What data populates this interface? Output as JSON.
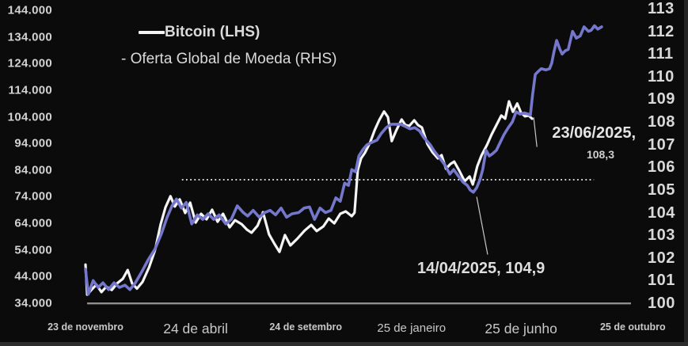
{
  "chart_data": {
    "type": "line",
    "grid": false,
    "legend_position": "top-left-inside",
    "legend": {
      "bitcoin_label": "Bitcoin (LHS)",
      "money_label": "- Oferta Global de Moeda (RHS)"
    },
    "colors": {
      "bitcoin": "#f5f5f5",
      "money_supply": "#7577cc",
      "background": "#0b0b0b",
      "axis_text": "#d2d2d2",
      "baseline": "#8f8f8f",
      "dotted_reference": "#d8d8d8",
      "callout": "#c8c8c8"
    },
    "axes": {
      "left": {
        "side": "left",
        "unit": "USD",
        "min": 34000,
        "max": 144000,
        "ticks": [
          {
            "label": "144.000",
            "v": 144
          },
          {
            "label": "134.000",
            "v": 134
          },
          {
            "label": "124.000",
            "v": 124
          },
          {
            "label": "114.000",
            "v": 114
          },
          {
            "label": "104.000",
            "v": 104
          },
          {
            "label": "94.000",
            "v": 94
          },
          {
            "label": "84.000",
            "v": 84
          },
          {
            "label": "74.000",
            "v": 74
          },
          {
            "label": "64.000",
            "v": 64
          },
          {
            "label": "54.000",
            "v": 54
          },
          {
            "label": "44.000",
            "v": 44
          },
          {
            "label": "34.000",
            "v": 34
          }
        ]
      },
      "right": {
        "side": "right",
        "unit": "index",
        "min": 100,
        "max": 113,
        "ticks": [
          {
            "label": "113",
            "v": 113
          },
          {
            "label": "112",
            "v": 112
          },
          {
            "label": "111",
            "v": 111
          },
          {
            "label": "110",
            "v": 110
          },
          {
            "label": "109",
            "v": 109
          },
          {
            "label": "108",
            "v": 108
          },
          {
            "label": "107",
            "v": 107
          },
          {
            "label": "106",
            "v": 106
          },
          {
            "label": "105",
            "v": 105
          },
          {
            "label": "104",
            "v": 104
          },
          {
            "label": "103",
            "v": 103
          },
          {
            "label": "102",
            "v": 102
          },
          {
            "label": "101",
            "v": 101
          },
          {
            "label": "100",
            "v": 100
          }
        ]
      },
      "x": {
        "ticks": [
          {
            "label": "23 de novembro",
            "f": 0.0,
            "size": "sm"
          },
          {
            "label": "24 de abril",
            "f": 0.201,
            "size": "lg"
          },
          {
            "label": "24 de setembro",
            "f": 0.402,
            "size": "sm"
          },
          {
            "label": "25 de janeiro",
            "f": 0.595,
            "size": "md"
          },
          {
            "label": "25 de junho",
            "f": 0.795,
            "size": "lg"
          },
          {
            "label": "25 de outubro",
            "f": 0.999,
            "size": "sm"
          }
        ]
      }
    },
    "reference_line": {
      "style": "dotted",
      "axis": "right",
      "value": 105.45,
      "f_start": 0.176,
      "f_end": 0.928
    },
    "annotations": [
      {
        "line1": "23/06/2025,",
        "line2": "108,3",
        "callout": {
          "axis": "right",
          "f1": 0.818,
          "v1": 108.2,
          "f2": 0.824,
          "v2": 106.9
        }
      },
      {
        "text": "14/04/2025, 104,9",
        "callout": {
          "axis": "right",
          "f1": 0.714,
          "v1": 104.7,
          "f2": 0.734,
          "v2": 102.15
        }
      }
    ],
    "series": [
      {
        "name": "Bitcoin",
        "axis": "left",
        "unit": "thousands_usd",
        "color": "#f5f5f5",
        "points": [
          [
            0.0,
            48.5
          ],
          [
            0.003,
            37.2
          ],
          [
            0.012,
            39.3
          ],
          [
            0.02,
            41.0
          ],
          [
            0.029,
            38.2
          ],
          [
            0.038,
            40.2
          ],
          [
            0.048,
            39.0
          ],
          [
            0.058,
            41.5
          ],
          [
            0.068,
            43.2
          ],
          [
            0.077,
            46.5
          ],
          [
            0.085,
            41.5
          ],
          [
            0.094,
            39.5
          ],
          [
            0.104,
            42.0
          ],
          [
            0.116,
            47.5
          ],
          [
            0.127,
            54.0
          ],
          [
            0.137,
            63.5
          ],
          [
            0.146,
            70.0
          ],
          [
            0.155,
            74.2
          ],
          [
            0.163,
            70.3
          ],
          [
            0.172,
            73.0
          ],
          [
            0.182,
            67.9
          ],
          [
            0.191,
            71.8
          ],
          [
            0.201,
            64.3
          ],
          [
            0.211,
            67.6
          ],
          [
            0.221,
            65.5
          ],
          [
            0.231,
            69.1
          ],
          [
            0.241,
            64.6
          ],
          [
            0.251,
            67.6
          ],
          [
            0.263,
            62.5
          ],
          [
            0.273,
            65.2
          ],
          [
            0.285,
            63.7
          ],
          [
            0.295,
            61.6
          ],
          [
            0.303,
            60.5
          ],
          [
            0.314,
            63.1
          ],
          [
            0.324,
            68.2
          ],
          [
            0.335,
            59.9
          ],
          [
            0.345,
            56.3
          ],
          [
            0.354,
            53.3
          ],
          [
            0.364,
            59.6
          ],
          [
            0.374,
            55.7
          ],
          [
            0.386,
            58.1
          ],
          [
            0.4,
            61.3
          ],
          [
            0.412,
            63.4
          ],
          [
            0.422,
            61.1
          ],
          [
            0.434,
            62.8
          ],
          [
            0.444,
            65.8
          ],
          [
            0.454,
            64.0
          ],
          [
            0.465,
            67.6
          ],
          [
            0.475,
            68.5
          ],
          [
            0.486,
            66.7
          ],
          [
            0.491,
            68.0
          ],
          [
            0.497,
            84.0
          ],
          [
            0.503,
            88.4
          ],
          [
            0.51,
            90.5
          ],
          [
            0.519,
            94.1
          ],
          [
            0.528,
            99.1
          ],
          [
            0.536,
            102.7
          ],
          [
            0.545,
            106.0
          ],
          [
            0.552,
            103.9
          ],
          [
            0.559,
            94.9
          ],
          [
            0.567,
            98.8
          ],
          [
            0.577,
            103.0
          ],
          [
            0.584,
            100.9
          ],
          [
            0.591,
            100.6
          ],
          [
            0.6,
            102.7
          ],
          [
            0.607,
            100.9
          ],
          [
            0.614,
            100.0
          ],
          [
            0.624,
            93.8
          ],
          [
            0.633,
            90.8
          ],
          [
            0.643,
            88.4
          ],
          [
            0.65,
            89.6
          ],
          [
            0.658,
            84.5
          ],
          [
            0.666,
            86.3
          ],
          [
            0.673,
            87.2
          ],
          [
            0.682,
            83.9
          ],
          [
            0.692,
            79.8
          ],
          [
            0.701,
            81.6
          ],
          [
            0.707,
            78.6
          ],
          [
            0.715,
            85.4
          ],
          [
            0.723,
            89.6
          ],
          [
            0.733,
            93.5
          ],
          [
            0.741,
            97.3
          ],
          [
            0.75,
            100.9
          ],
          [
            0.759,
            104.5
          ],
          [
            0.766,
            103.3
          ],
          [
            0.773,
            109.8
          ],
          [
            0.78,
            105.9
          ],
          [
            0.788,
            109.0
          ],
          [
            0.795,
            105.6
          ],
          [
            0.802,
            104.2
          ],
          [
            0.809,
            104.5
          ],
          [
            0.815,
            103.3
          ]
        ]
      },
      {
        "name": "Oferta Global de Moeda",
        "axis": "right",
        "unit": "index",
        "color": "#7577cc",
        "points": [
          [
            0.0,
            101.5
          ],
          [
            0.005,
            100.4
          ],
          [
            0.014,
            101.0
          ],
          [
            0.023,
            100.7
          ],
          [
            0.032,
            100.9
          ],
          [
            0.042,
            100.6
          ],
          [
            0.052,
            100.9
          ],
          [
            0.062,
            100.7
          ],
          [
            0.072,
            100.8
          ],
          [
            0.081,
            100.6
          ],
          [
            0.091,
            100.9
          ],
          [
            0.103,
            101.4
          ],
          [
            0.114,
            101.9
          ],
          [
            0.127,
            102.4
          ],
          [
            0.139,
            103.1
          ],
          [
            0.149,
            103.8
          ],
          [
            0.158,
            104.3
          ],
          [
            0.166,
            104.6
          ],
          [
            0.175,
            104.2
          ],
          [
            0.184,
            104.45
          ],
          [
            0.194,
            103.5
          ],
          [
            0.204,
            103.9
          ],
          [
            0.214,
            103.7
          ],
          [
            0.224,
            103.95
          ],
          [
            0.234,
            103.7
          ],
          [
            0.244,
            103.9
          ],
          [
            0.256,
            103.5
          ],
          [
            0.266,
            103.7
          ],
          [
            0.277,
            104.3
          ],
          [
            0.288,
            104.0
          ],
          [
            0.296,
            103.85
          ],
          [
            0.306,
            104.1
          ],
          [
            0.317,
            103.8
          ],
          [
            0.327,
            104.0
          ],
          [
            0.337,
            104.1
          ],
          [
            0.347,
            103.9
          ],
          [
            0.357,
            104.2
          ],
          [
            0.367,
            103.8
          ],
          [
            0.377,
            103.95
          ],
          [
            0.389,
            104.0
          ],
          [
            0.399,
            104.2
          ],
          [
            0.409,
            104.25
          ],
          [
            0.418,
            103.7
          ],
          [
            0.428,
            104.2
          ],
          [
            0.438,
            104.0
          ],
          [
            0.448,
            104.1
          ],
          [
            0.457,
            104.65
          ],
          [
            0.465,
            104.5
          ],
          [
            0.473,
            105.3
          ],
          [
            0.48,
            105.2
          ],
          [
            0.486,
            105.9
          ],
          [
            0.493,
            105.8
          ],
          [
            0.499,
            106.5
          ],
          [
            0.507,
            106.8
          ],
          [
            0.514,
            107.0
          ],
          [
            0.523,
            107.1
          ],
          [
            0.532,
            107.2
          ],
          [
            0.54,
            107.5
          ],
          [
            0.549,
            107.75
          ],
          [
            0.558,
            107.9
          ],
          [
            0.567,
            107.9
          ],
          [
            0.575,
            107.9
          ],
          [
            0.584,
            107.8
          ],
          [
            0.592,
            107.7
          ],
          [
            0.601,
            107.75
          ],
          [
            0.61,
            107.6
          ],
          [
            0.618,
            107.3
          ],
          [
            0.629,
            107.0
          ],
          [
            0.637,
            106.7
          ],
          [
            0.647,
            106.4
          ],
          [
            0.656,
            106.1
          ],
          [
            0.665,
            105.7
          ],
          [
            0.672,
            105.9
          ],
          [
            0.681,
            105.6
          ],
          [
            0.689,
            105.35
          ],
          [
            0.697,
            105.2
          ],
          [
            0.702,
            105.0
          ],
          [
            0.708,
            104.9
          ],
          [
            0.714,
            105.1
          ],
          [
            0.72,
            105.45
          ],
          [
            0.725,
            105.9
          ],
          [
            0.731,
            106.75
          ],
          [
            0.737,
            106.5
          ],
          [
            0.743,
            106.6
          ],
          [
            0.75,
            106.75
          ],
          [
            0.757,
            107.1
          ],
          [
            0.764,
            107.45
          ],
          [
            0.772,
            107.76
          ],
          [
            0.779,
            108.0
          ],
          [
            0.786,
            108.45
          ],
          [
            0.793,
            108.35
          ],
          [
            0.801,
            108.4
          ],
          [
            0.808,
            108.35
          ],
          [
            0.812,
            108.3
          ],
          [
            0.816,
            109.2
          ],
          [
            0.821,
            110.1
          ],
          [
            0.827,
            110.25
          ],
          [
            0.832,
            110.35
          ],
          [
            0.84,
            110.3
          ],
          [
            0.847,
            110.35
          ],
          [
            0.851,
            110.6
          ],
          [
            0.855,
            111.1
          ],
          [
            0.86,
            111.6
          ],
          [
            0.866,
            111.2
          ],
          [
            0.87,
            111.0
          ],
          [
            0.876,
            111.15
          ],
          [
            0.881,
            111.2
          ],
          [
            0.889,
            112.0
          ],
          [
            0.896,
            111.7
          ],
          [
            0.903,
            111.8
          ],
          [
            0.91,
            112.2
          ],
          [
            0.918,
            112.0
          ],
          [
            0.923,
            112.05
          ],
          [
            0.929,
            112.25
          ],
          [
            0.935,
            112.1
          ],
          [
            0.942,
            112.2
          ]
        ]
      }
    ]
  }
}
